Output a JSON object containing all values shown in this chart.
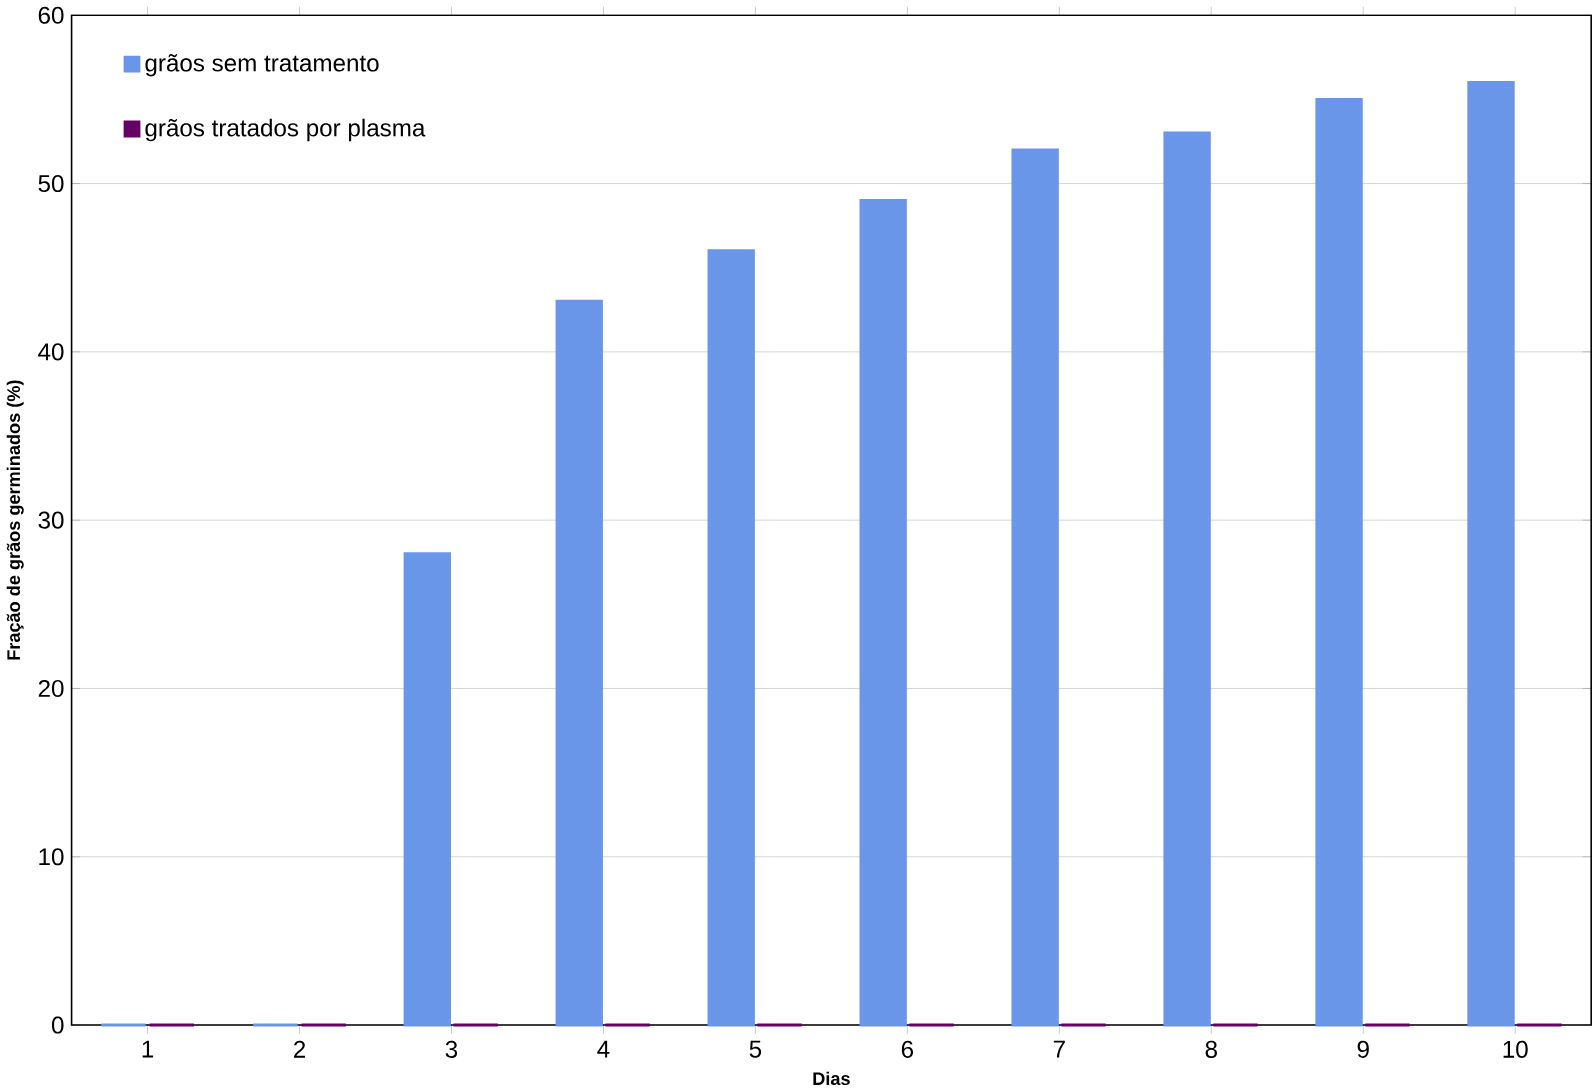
{
  "chart_data": {
    "type": "bar",
    "xlabel": "Dias",
    "ylabel": "Fração de grãos germinados (%)",
    "categories": [
      "1",
      "2",
      "3",
      "4",
      "5",
      "6",
      "7",
      "8",
      "9",
      "10"
    ],
    "series": [
      {
        "name": "grãos sem tratamento",
        "color": "#6a96ea",
        "values": [
          0,
          0,
          28,
          43,
          46,
          49,
          52,
          53,
          55,
          56
        ]
      },
      {
        "name": "grãos tratados por plasma",
        "color": "#660066",
        "values": [
          0,
          0,
          0,
          0,
          0,
          0,
          0,
          0,
          0,
          0
        ]
      }
    ],
    "ylim": [
      0,
      60
    ],
    "yticks": [
      0,
      10,
      20,
      30,
      40,
      50,
      60
    ],
    "grid": "y",
    "legend": "top left"
  }
}
